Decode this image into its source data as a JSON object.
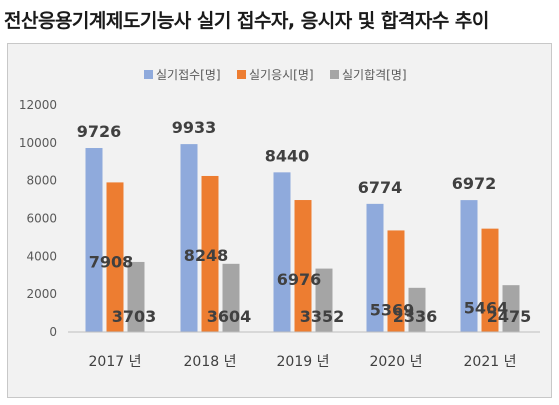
{
  "chart_data": {
    "type": "bar",
    "title": "전산응용기계제도기능사 실기 접수자, 응시자 및 합격자수 추이",
    "categories": [
      "2017 년",
      "2018 년",
      "2019 년",
      "2020 년",
      "2021 년"
    ],
    "series": [
      {
        "name": "실기접수[명]",
        "color": "#8faadc",
        "values": [
          9726,
          9933,
          8440,
          6774,
          6972
        ]
      },
      {
        "name": "실기응시[명]",
        "color": "#ed7d31",
        "values": [
          7908,
          8248,
          6976,
          5369,
          5464
        ]
      },
      {
        "name": "실기합격[명]",
        "color": "#a5a5a5",
        "values": [
          3703,
          3604,
          3352,
          2336,
          2475
        ]
      }
    ],
    "yticks": [
      "0",
      "2000",
      "4000",
      "6000",
      "8000",
      "10000",
      "12000"
    ],
    "ylim": [
      0,
      12000
    ],
    "legend_position": "top",
    "grid": false
  }
}
